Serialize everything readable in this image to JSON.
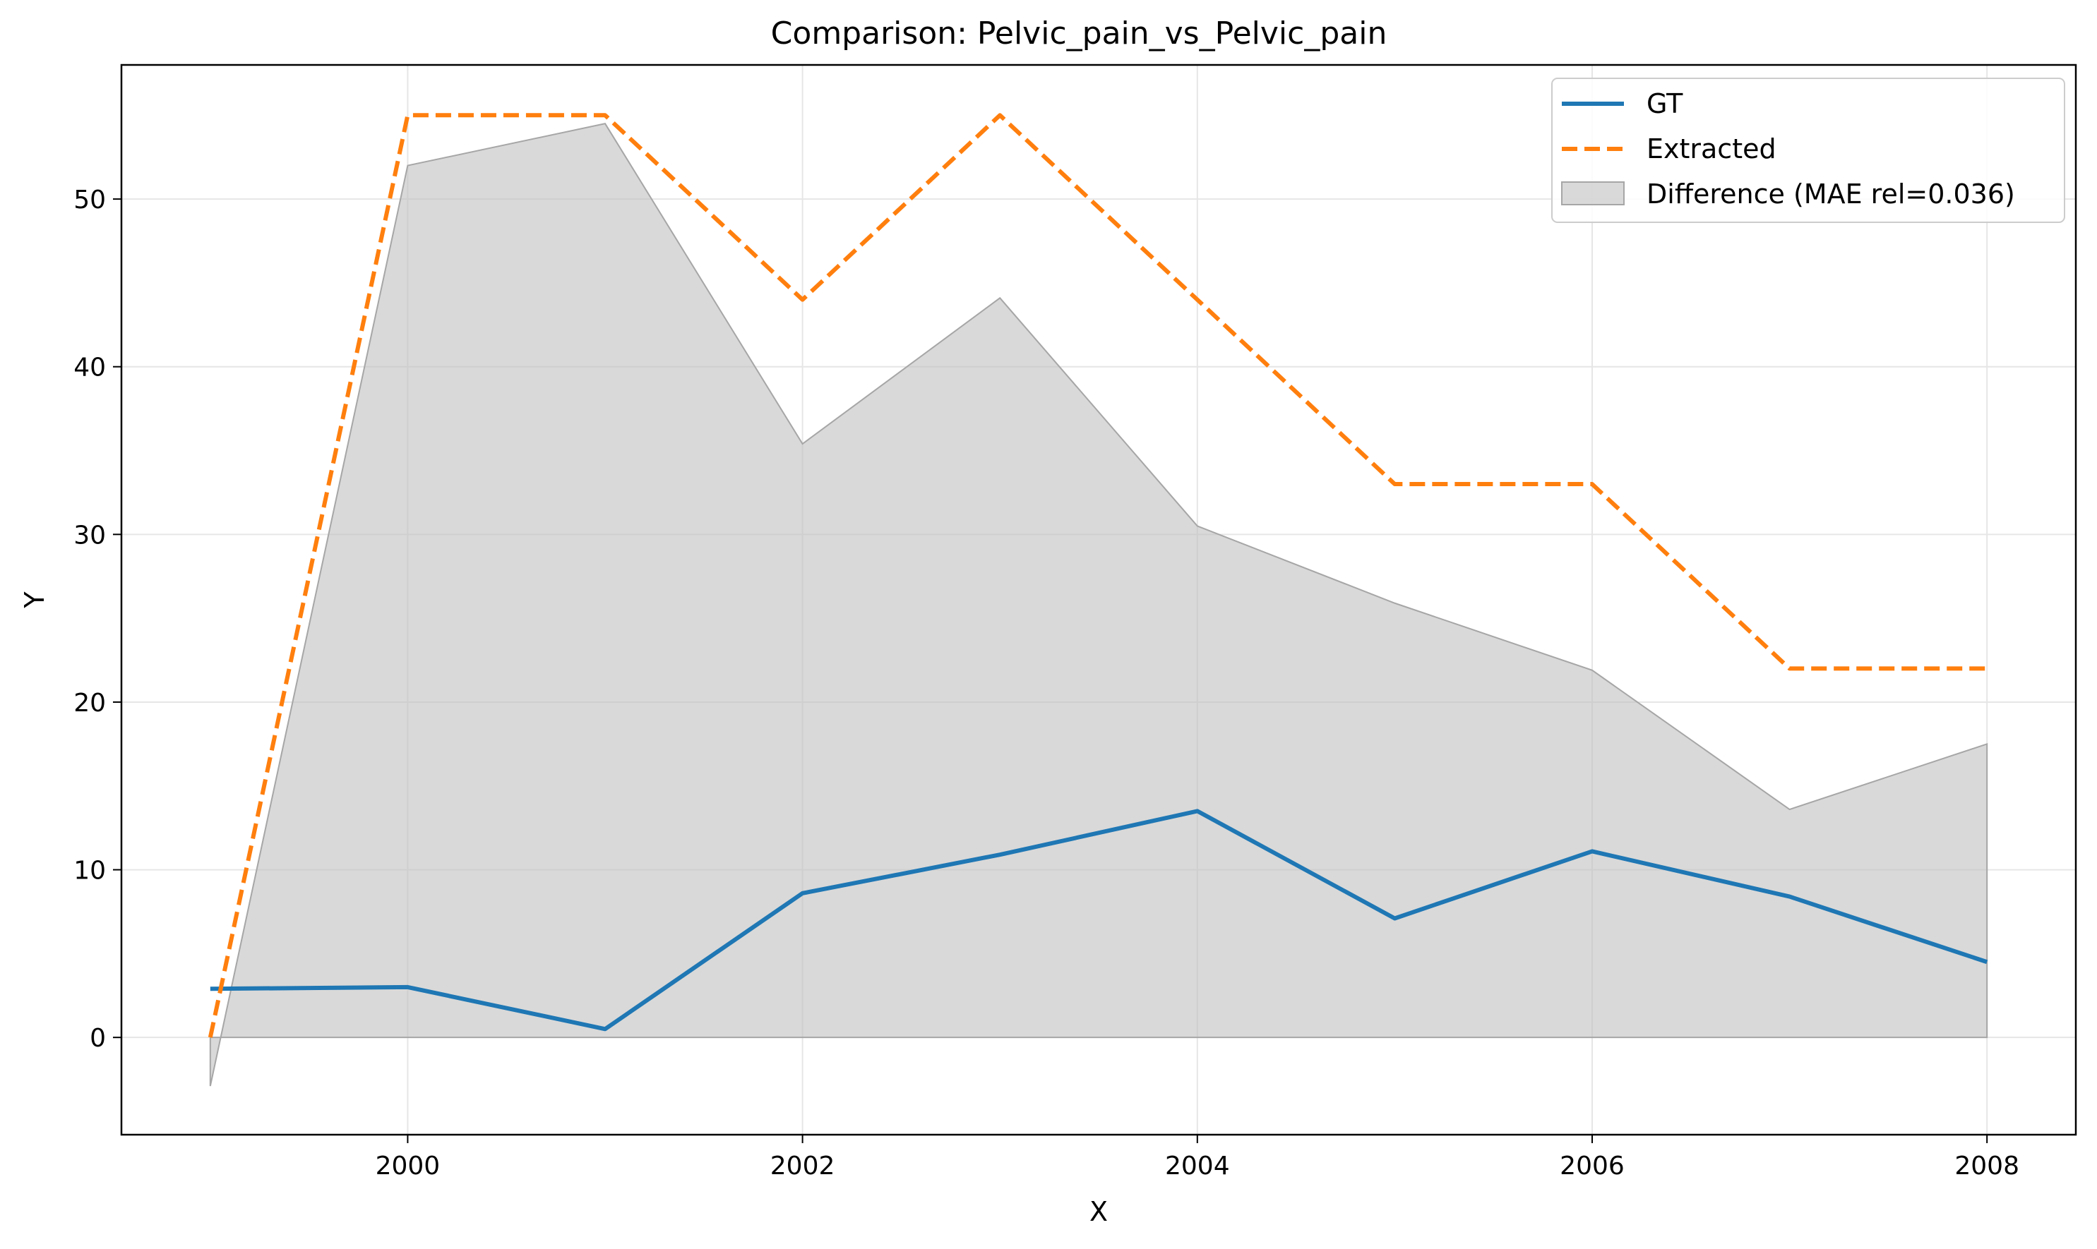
{
  "chart_data": {
    "type": "line",
    "title": "Comparison: Pelvic_pain_vs_Pelvic_pain",
    "xlabel": "X",
    "ylabel": "Y",
    "xlim": [
      1998.55,
      2008.45
    ],
    "ylim": [
      -5.8,
      58.0
    ],
    "xticks": [
      2000,
      2002,
      2004,
      2006,
      2008
    ],
    "yticks": [
      0,
      10,
      20,
      30,
      40,
      50
    ],
    "grid": true,
    "legend_position": "top-right",
    "x": [
      1999,
      2000,
      2001,
      2002,
      2003,
      2004,
      2005,
      2006,
      2007,
      2008
    ],
    "series": [
      {
        "name": "GT",
        "style": "solid",
        "color": "#1f77b4",
        "values": [
          2.9,
          3.0,
          0.5,
          8.6,
          10.9,
          13.5,
          7.1,
          11.1,
          8.4,
          4.5
        ]
      },
      {
        "name": "Extracted",
        "style": "dashed",
        "color": "#ff7f0e",
        "values": [
          0.0,
          55.0,
          55.0,
          44.0,
          55.0,
          44.0,
          33.0,
          33.0,
          22.0,
          22.0
        ]
      }
    ],
    "fill": {
      "name": "Difference (MAE rel=0.036)",
      "color": "#bfbfbf",
      "values": [
        -2.9,
        52.0,
        54.5,
        35.4,
        44.1,
        30.5,
        25.9,
        21.9,
        13.6,
        17.5
      ]
    }
  }
}
